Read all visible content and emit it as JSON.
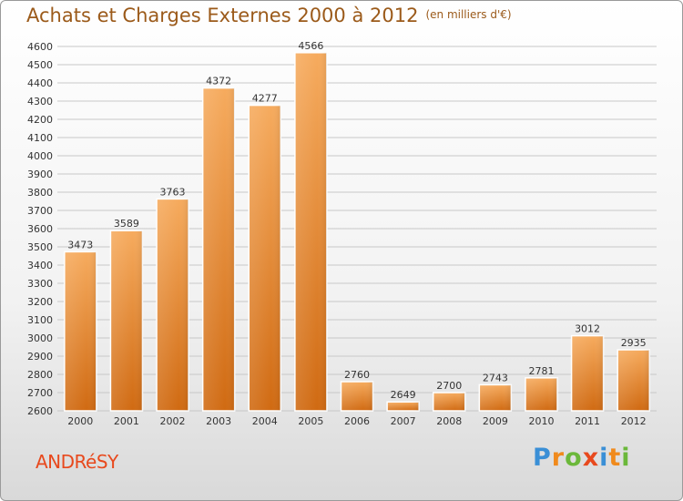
{
  "header": {
    "title": "Achats et Charges Externes 2000 à 2012",
    "unit": "(en milliers d'€)"
  },
  "footer": {
    "town": "ANDRéSY",
    "logo": {
      "letters": [
        "P",
        "r",
        "o",
        "x",
        "i",
        "t",
        "i"
      ],
      "colors": [
        "#3a8fd6",
        "#f08a1c",
        "#6bb83a",
        "#e8491d",
        "#3a8fd6",
        "#f08a1c",
        "#6bb83a"
      ]
    }
  },
  "colors": {
    "bar_top": "#f6ab5e",
    "bar_bottom": "#d06a12",
    "grid": "#c8c8c8",
    "axis_text": "#333333",
    "title": "#9b5a1a",
    "town": "#e8491d"
  },
  "chart_data": {
    "type": "bar",
    "title": "Achats et Charges Externes 2000 à 2012",
    "subtitle": "(en milliers d'€)",
    "xlabel": "",
    "ylabel": "",
    "categories": [
      "2000",
      "2001",
      "2002",
      "2003",
      "2004",
      "2005",
      "2006",
      "2007",
      "2008",
      "2009",
      "2010",
      "2011",
      "2012"
    ],
    "values": [
      3473,
      3589,
      3763,
      4372,
      4277,
      4566,
      2760,
      2649,
      2700,
      2743,
      2781,
      3012,
      2935
    ],
    "ylim": [
      2600,
      4600
    ],
    "yticks": [
      2600,
      2700,
      2800,
      2900,
      3000,
      3100,
      3200,
      3300,
      3400,
      3500,
      3600,
      3700,
      3800,
      3900,
      4000,
      4100,
      4200,
      4300,
      4400,
      4500,
      4600
    ],
    "grid": true,
    "legend": "none"
  }
}
